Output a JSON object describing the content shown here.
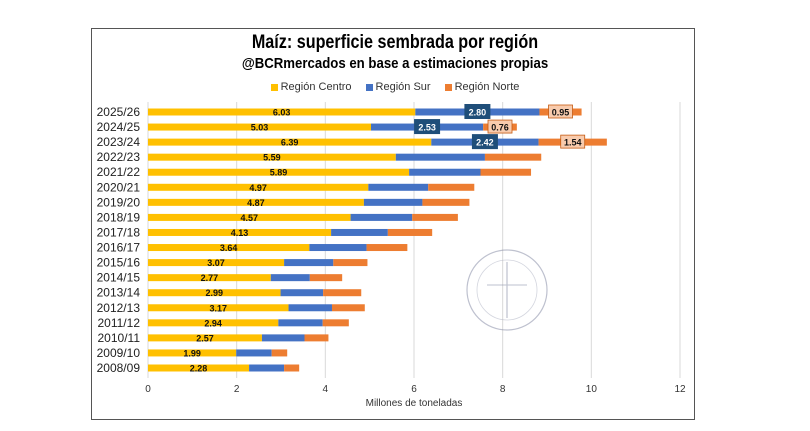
{
  "chart_data": {
    "type": "bar",
    "orientation": "horizontal",
    "stacked": true,
    "title": "Maíz: superficie sembrada por región",
    "subtitle": "@BCRmercados en base a estimaciones propias",
    "xlabel": "Millones de toneladas",
    "ylabel": "",
    "xlim": [
      0,
      12
    ],
    "xticks": [
      0,
      2,
      4,
      6,
      8,
      10,
      12
    ],
    "grid": true,
    "legend_position": "top",
    "categories": [
      "2025/26",
      "2024/25",
      "2023/24",
      "2022/23",
      "2021/22",
      "2020/21",
      "2019/20",
      "2018/19",
      "2017/18",
      "2016/17",
      "2015/16",
      "2014/15",
      "2013/14",
      "2012/13",
      "2011/12",
      "2010/11",
      "2009/10",
      "2008/09"
    ],
    "series": [
      {
        "name": "Región Centro",
        "color": "#FFC000",
        "values": [
          6.03,
          5.03,
          6.39,
          5.59,
          5.89,
          4.97,
          4.87,
          4.57,
          4.13,
          3.64,
          3.07,
          2.77,
          2.99,
          3.17,
          2.94,
          2.57,
          1.99,
          2.28
        ],
        "labels": [
          "6.03",
          "5.03",
          "6.39",
          "5.59",
          "5.89",
          "4.97",
          "4.87",
          "4.57",
          "4.13",
          "3.64",
          "3.07",
          "2.77",
          "2.99",
          "3.17",
          "2.94",
          "2.57",
          "1.99",
          "2.28"
        ]
      },
      {
        "name": "Región Sur",
        "color": "#4472C4",
        "values": [
          2.8,
          2.53,
          2.42,
          2.01,
          1.61,
          1.35,
          1.32,
          1.39,
          1.28,
          1.29,
          1.11,
          0.88,
          0.96,
          0.98,
          1.0,
          0.96,
          0.8,
          0.79
        ],
        "labels": [
          "2.80",
          "2.53",
          "2.42",
          "",
          "",
          "",
          "",
          "",
          "",
          "",
          "",
          "",
          "",
          "",
          "",
          "",
          "",
          ""
        ]
      },
      {
        "name": "Región Norte",
        "color": "#ED7D31",
        "values": [
          0.95,
          0.76,
          1.54,
          1.27,
          1.14,
          1.04,
          1.06,
          1.03,
          1.0,
          0.92,
          0.77,
          0.73,
          0.86,
          0.74,
          0.59,
          0.54,
          0.35,
          0.34
        ],
        "labels": [
          "0.95",
          "0.76",
          "1.54",
          "",
          "",
          "",
          "",
          "",
          "",
          "",
          "",
          "",
          "",
          "",
          "",
          "",
          "",
          ""
        ]
      }
    ]
  }
}
